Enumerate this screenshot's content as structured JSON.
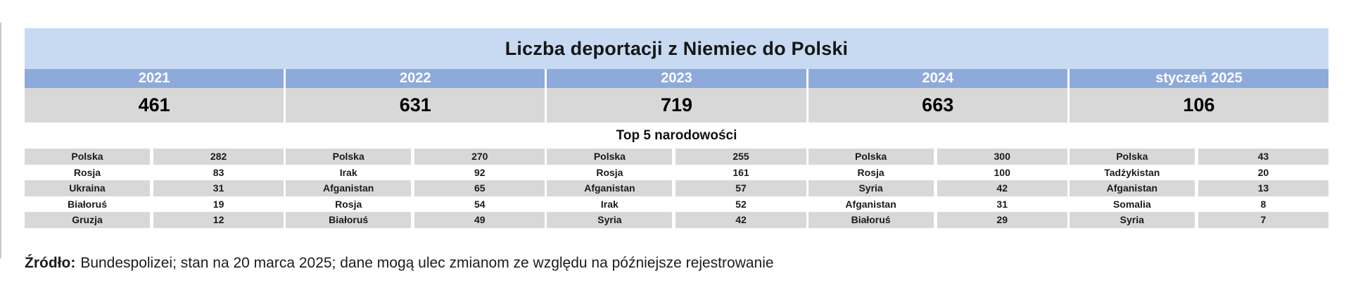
{
  "title": "Liczba deportacji z Niemiec do Polski",
  "subtitle": "Top 5 narodowości",
  "source": {
    "label": "Źródło:",
    "text": "Bundespolizei; stan na 20 marca 2025; dane mogą ulec zmianom ze względu na późniejsze rejestrowanie"
  },
  "colors": {
    "title_band_bg": "#c7daf2",
    "year_header_bg": "#8eaadb",
    "gray_cell_bg": "#d8d8d8",
    "year_header_text": "#ffffff"
  },
  "chart_data": {
    "type": "table",
    "title": "Liczba deportacji z Niemiec do Polski",
    "subtitle": "Top 5 narodowości",
    "columns": [
      {
        "period": "2021",
        "total": "461",
        "top5": [
          [
            "Polska",
            "282"
          ],
          [
            "Rosja",
            "83"
          ],
          [
            "Ukraina",
            "31"
          ],
          [
            "Białoruś",
            "19"
          ],
          [
            "Gruzja",
            "12"
          ]
        ]
      },
      {
        "period": "2022",
        "total": "631",
        "top5": [
          [
            "Polska",
            "270"
          ],
          [
            "Irak",
            "92"
          ],
          [
            "Afganistan",
            "65"
          ],
          [
            "Rosja",
            "54"
          ],
          [
            "Białoruś",
            "49"
          ]
        ]
      },
      {
        "period": "2023",
        "total": "719",
        "top5": [
          [
            "Polska",
            "255"
          ],
          [
            "Rosja",
            "161"
          ],
          [
            "Afganistan",
            "57"
          ],
          [
            "Irak",
            "52"
          ],
          [
            "Syria",
            "42"
          ]
        ]
      },
      {
        "period": "2024",
        "total": "663",
        "top5": [
          [
            "Polska",
            "300"
          ],
          [
            "Rosja",
            "100"
          ],
          [
            "Syria",
            "42"
          ],
          [
            "Afganistan",
            "31"
          ],
          [
            "Białoruś",
            "29"
          ]
        ]
      },
      {
        "period": "styczeń 2025",
        "total": "106",
        "top5": [
          [
            "Polska",
            "43"
          ],
          [
            "Tadżykistan",
            "20"
          ],
          [
            "Afganistan",
            "13"
          ],
          [
            "Somalia",
            "8"
          ],
          [
            "Syria",
            "7"
          ]
        ]
      }
    ]
  }
}
